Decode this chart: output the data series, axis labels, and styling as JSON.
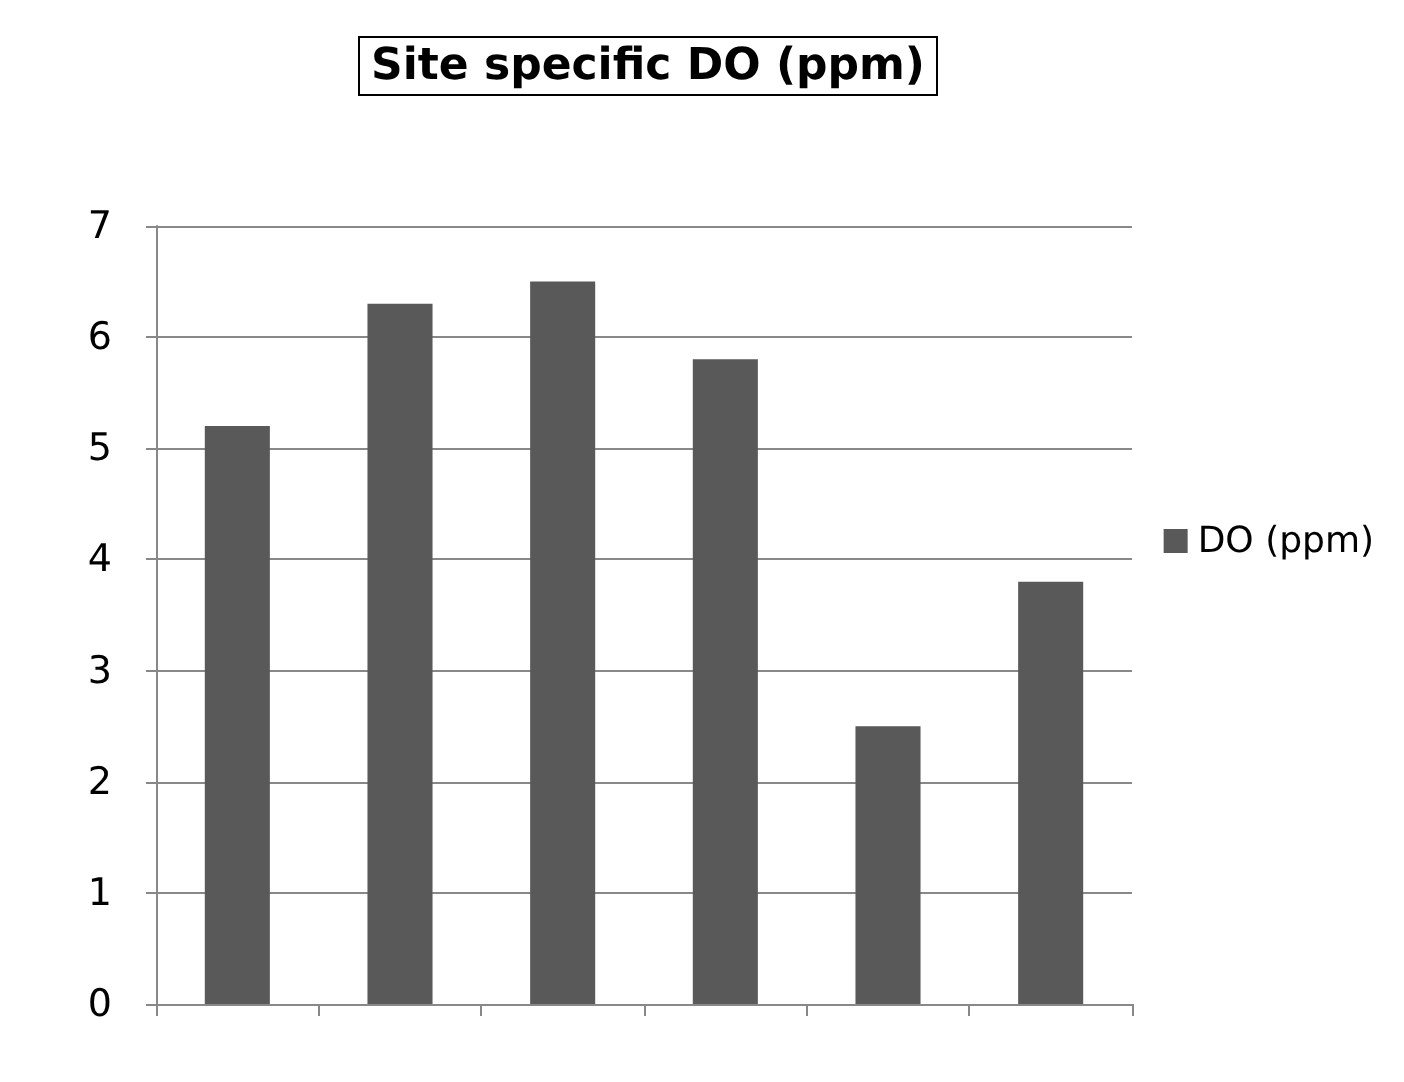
{
  "chart_data": {
    "type": "bar",
    "title": "Site specific DO (ppm)",
    "categories": [
      null,
      null,
      null,
      null,
      null,
      null
    ],
    "series": [
      {
        "name": "DO (ppm)",
        "color": "#595959",
        "values": [
          5.2,
          6.3,
          6.5,
          5.8,
          2.5,
          3.8
        ]
      }
    ],
    "ylim": [
      0,
      7
    ],
    "yticks": [
      0,
      1,
      2,
      3,
      4,
      5,
      6,
      7
    ],
    "grid": "y",
    "legend": "right"
  }
}
